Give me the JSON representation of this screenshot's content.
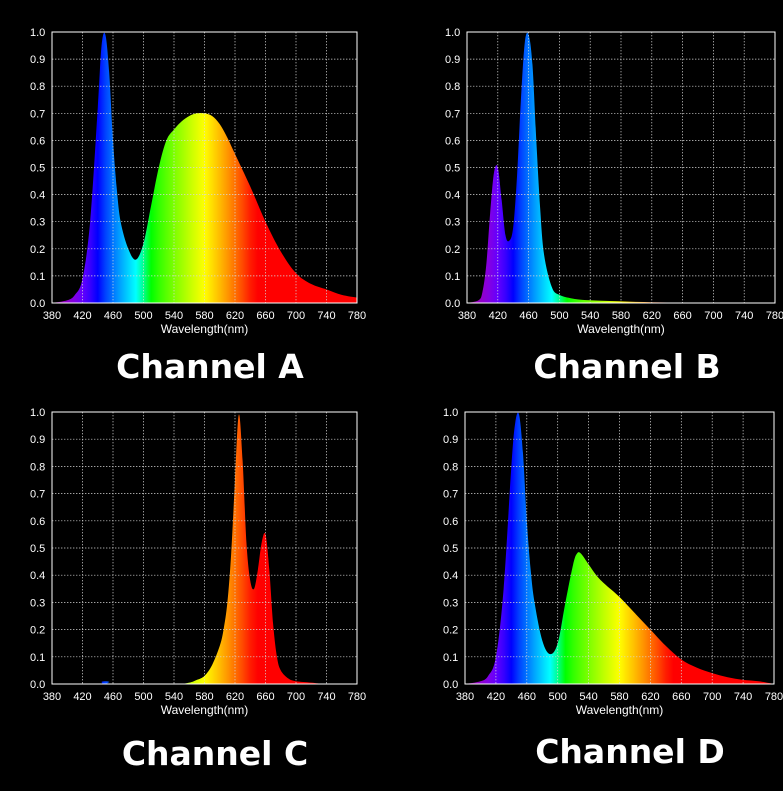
{
  "chart_data": [
    {
      "type": "area",
      "title": "Channel A",
      "xlabel": "Wavelength(nm)",
      "ylabel": "",
      "xlim": [
        380,
        780
      ],
      "ylim": [
        0,
        1.0
      ],
      "xticks": [
        380,
        420,
        460,
        500,
        540,
        580,
        620,
        660,
        700,
        740,
        780
      ],
      "yticks": [
        "0.0",
        "0.1",
        "0.2",
        "0.3",
        "0.4",
        "0.5",
        "0.6",
        "0.7",
        "0.8",
        "0.9",
        "1.0"
      ],
      "grid": true,
      "fill": "spectrum",
      "x": [
        380,
        400,
        410,
        420,
        430,
        440,
        445,
        450,
        455,
        460,
        465,
        470,
        480,
        490,
        500,
        510,
        520,
        530,
        540,
        550,
        560,
        570,
        580,
        590,
        600,
        610,
        620,
        640,
        660,
        680,
        700,
        720,
        740,
        760,
        780
      ],
      "values": [
        0.0,
        0.01,
        0.03,
        0.09,
        0.3,
        0.72,
        0.95,
        0.99,
        0.85,
        0.6,
        0.42,
        0.3,
        0.2,
        0.16,
        0.22,
        0.36,
        0.5,
        0.6,
        0.64,
        0.67,
        0.69,
        0.7,
        0.7,
        0.69,
        0.66,
        0.61,
        0.55,
        0.43,
        0.3,
        0.19,
        0.11,
        0.07,
        0.05,
        0.03,
        0.02
      ]
    },
    {
      "type": "area",
      "title": "Channel B",
      "xlabel": "Wavelength(nm)",
      "ylabel": "",
      "xlim": [
        380,
        780
      ],
      "ylim": [
        0,
        1.0
      ],
      "xticks": [
        380,
        420,
        460,
        500,
        540,
        580,
        620,
        660,
        700,
        740,
        780
      ],
      "yticks": [
        "0.0",
        "0.1",
        "0.2",
        "0.3",
        "0.4",
        "0.5",
        "0.6",
        "0.7",
        "0.8",
        "0.9",
        "1.0"
      ],
      "grid": true,
      "fill": "spectrum",
      "x": [
        380,
        395,
        400,
        405,
        410,
        415,
        420,
        425,
        430,
        435,
        440,
        445,
        450,
        455,
        460,
        465,
        470,
        475,
        480,
        490,
        500,
        520,
        540,
        560,
        580,
        600,
        620,
        640,
        660,
        700,
        740,
        780
      ],
      "values": [
        0.0,
        0.01,
        0.04,
        0.14,
        0.33,
        0.48,
        0.5,
        0.38,
        0.25,
        0.23,
        0.28,
        0.47,
        0.75,
        0.96,
        0.99,
        0.88,
        0.6,
        0.35,
        0.18,
        0.06,
        0.03,
        0.015,
        0.01,
        0.008,
        0.006,
        0.004,
        0.003,
        0.002,
        0.0,
        0.0,
        0.0,
        0.0
      ]
    },
    {
      "type": "area",
      "title": "Channel C",
      "xlabel": "Wavelength(nm)",
      "ylabel": "",
      "xlim": [
        380,
        780
      ],
      "ylim": [
        0,
        1.0
      ],
      "xticks": [
        380,
        420,
        460,
        500,
        540,
        580,
        620,
        660,
        700,
        740,
        780
      ],
      "yticks": [
        "0.0",
        "0.1",
        "0.2",
        "0.3",
        "0.4",
        "0.5",
        "0.6",
        "0.7",
        "0.8",
        "0.9",
        "1.0"
      ],
      "grid": true,
      "fill": "spectrum",
      "x": [
        380,
        440,
        445,
        450,
        455,
        460,
        540,
        560,
        570,
        580,
        590,
        600,
        605,
        610,
        615,
        620,
        625,
        630,
        635,
        640,
        645,
        650,
        655,
        660,
        665,
        670,
        675,
        680,
        690,
        700,
        720,
        740,
        780
      ],
      "values": [
        0.0,
        0.0,
        0.008,
        0.01,
        0.008,
        0.0,
        0.0,
        0.005,
        0.015,
        0.03,
        0.07,
        0.14,
        0.2,
        0.3,
        0.48,
        0.75,
        0.99,
        0.82,
        0.52,
        0.38,
        0.35,
        0.42,
        0.52,
        0.55,
        0.42,
        0.22,
        0.1,
        0.05,
        0.02,
        0.01,
        0.005,
        0.0,
        0.0
      ]
    },
    {
      "type": "area",
      "title": "Channel D",
      "xlabel": "Wavelength(nm)",
      "ylabel": "",
      "xlim": [
        380,
        780
      ],
      "ylim": [
        0,
        1.0
      ],
      "xticks": [
        380,
        420,
        460,
        500,
        540,
        580,
        620,
        660,
        700,
        740,
        780
      ],
      "yticks": [
        "0.0",
        "0.1",
        "0.2",
        "0.3",
        "0.4",
        "0.5",
        "0.6",
        "0.7",
        "0.8",
        "0.9",
        "1.0"
      ],
      "grid": true,
      "fill": "spectrum",
      "x": [
        380,
        400,
        410,
        420,
        430,
        440,
        445,
        450,
        455,
        460,
        465,
        470,
        480,
        490,
        500,
        510,
        520,
        525,
        530,
        540,
        550,
        560,
        580,
        600,
        620,
        640,
        660,
        680,
        700,
        720,
        740,
        760,
        780
      ],
      "values": [
        0.0,
        0.01,
        0.03,
        0.1,
        0.35,
        0.8,
        0.96,
        0.99,
        0.85,
        0.6,
        0.42,
        0.3,
        0.16,
        0.11,
        0.15,
        0.3,
        0.44,
        0.48,
        0.48,
        0.44,
        0.4,
        0.37,
        0.32,
        0.26,
        0.2,
        0.14,
        0.09,
        0.06,
        0.04,
        0.025,
        0.015,
        0.01,
        0.0
      ]
    }
  ]
}
